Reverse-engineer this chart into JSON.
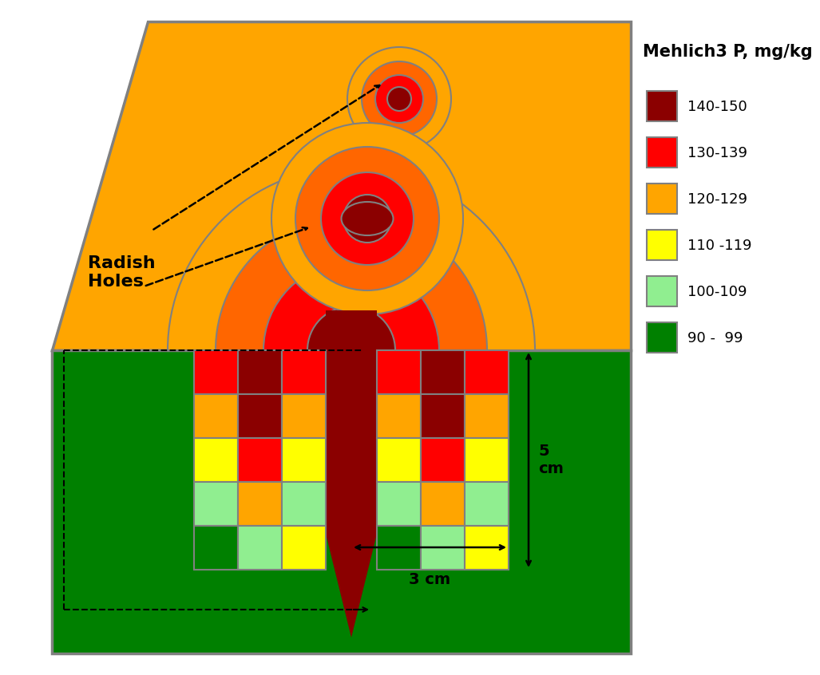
{
  "title": "Mehlich3 P, mg/kg",
  "legend_labels": [
    "140-150",
    "130-139",
    "120-129",
    "110 -119",
    "100-109",
    "90 -  99"
  ],
  "legend_colors": [
    "#8B0000",
    "#FF0000",
    "#FFA500",
    "#FFFF00",
    "#90EE90",
    "#008000"
  ],
  "colors": {
    "dark_red": "#8B0000",
    "red": "#FF0000",
    "orange": "#FF6600",
    "light_orange": "#FFA500",
    "yellow": "#FFFF00",
    "light_green": "#90EE90",
    "green": "#008000",
    "bg_orange": "#FFA500",
    "grid_outline": "#808080"
  },
  "left_rows": [
    [
      "red",
      "dark_red",
      "red"
    ],
    [
      "light_orange",
      "dark_red",
      "light_orange"
    ],
    [
      "yellow",
      "red",
      "yellow"
    ],
    [
      "light_green",
      "light_orange",
      "light_green"
    ],
    [
      "green",
      "light_green",
      "yellow"
    ]
  ],
  "right_rows": [
    [
      "red",
      "dark_red",
      "red"
    ],
    [
      "light_orange",
      "dark_red",
      "light_orange"
    ],
    [
      "yellow",
      "red",
      "yellow"
    ],
    [
      "light_green",
      "light_orange",
      "light_green"
    ],
    [
      "green",
      "light_green",
      "yellow"
    ]
  ],
  "radish_label": "Radish\nHoles",
  "dim_5cm": "5 cm",
  "dim_3cm": "3 cm"
}
